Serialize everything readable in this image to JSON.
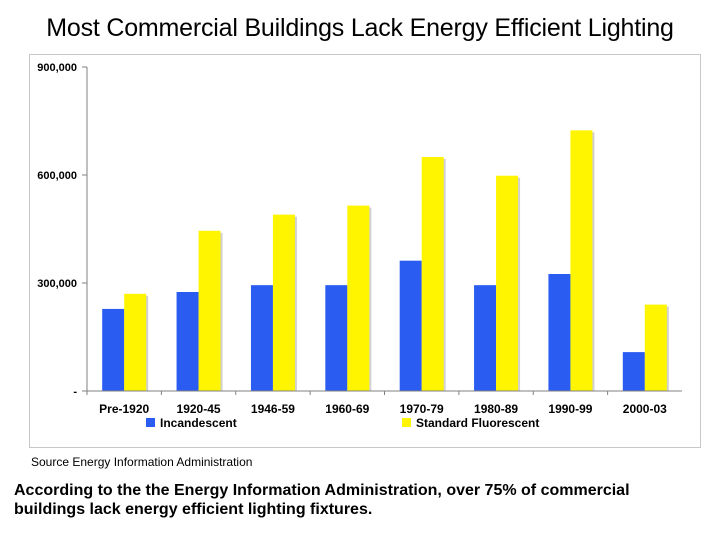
{
  "title": "Most Commercial Buildings Lack Energy Efficient Lighting",
  "source": "Source Energy Information Administration",
  "caption": "According to the the Energy Information Administration, over 75% of commercial buildings lack energy efficient lighting fixtures.",
  "colors": {
    "incandescent": "#2a5cf2",
    "fluorescent": "#fff500",
    "axis": "#808080",
    "grid": "#c0c0c0"
  },
  "chart_data": {
    "type": "bar",
    "title": "Most Commercial Buildings Lack Energy Efficient Lighting",
    "xlabel": "",
    "ylabel": "",
    "categories": [
      "Pre-1920",
      "1920-45",
      "1946-59",
      "1960-69",
      "1970-79",
      "1980-89",
      "1990-99",
      "2000-03"
    ],
    "series": [
      {
        "name": "Incandescent",
        "color": "#2a5cf2",
        "values": [
          228000,
          275000,
          294000,
          294000,
          362000,
          294000,
          325000,
          108000
        ]
      },
      {
        "name": "Standard Fluorescent",
        "color": "#fff500",
        "values": [
          270000,
          445000,
          490000,
          515000,
          650000,
          598000,
          724000,
          240000
        ]
      }
    ],
    "ylim": [
      0,
      900000
    ],
    "yticks": [
      0,
      300000,
      600000,
      900000
    ],
    "ytick_labels": [
      "-",
      "300,000",
      "600,000",
      "900,000"
    ],
    "grid": false,
    "legend_position": "bottom"
  }
}
